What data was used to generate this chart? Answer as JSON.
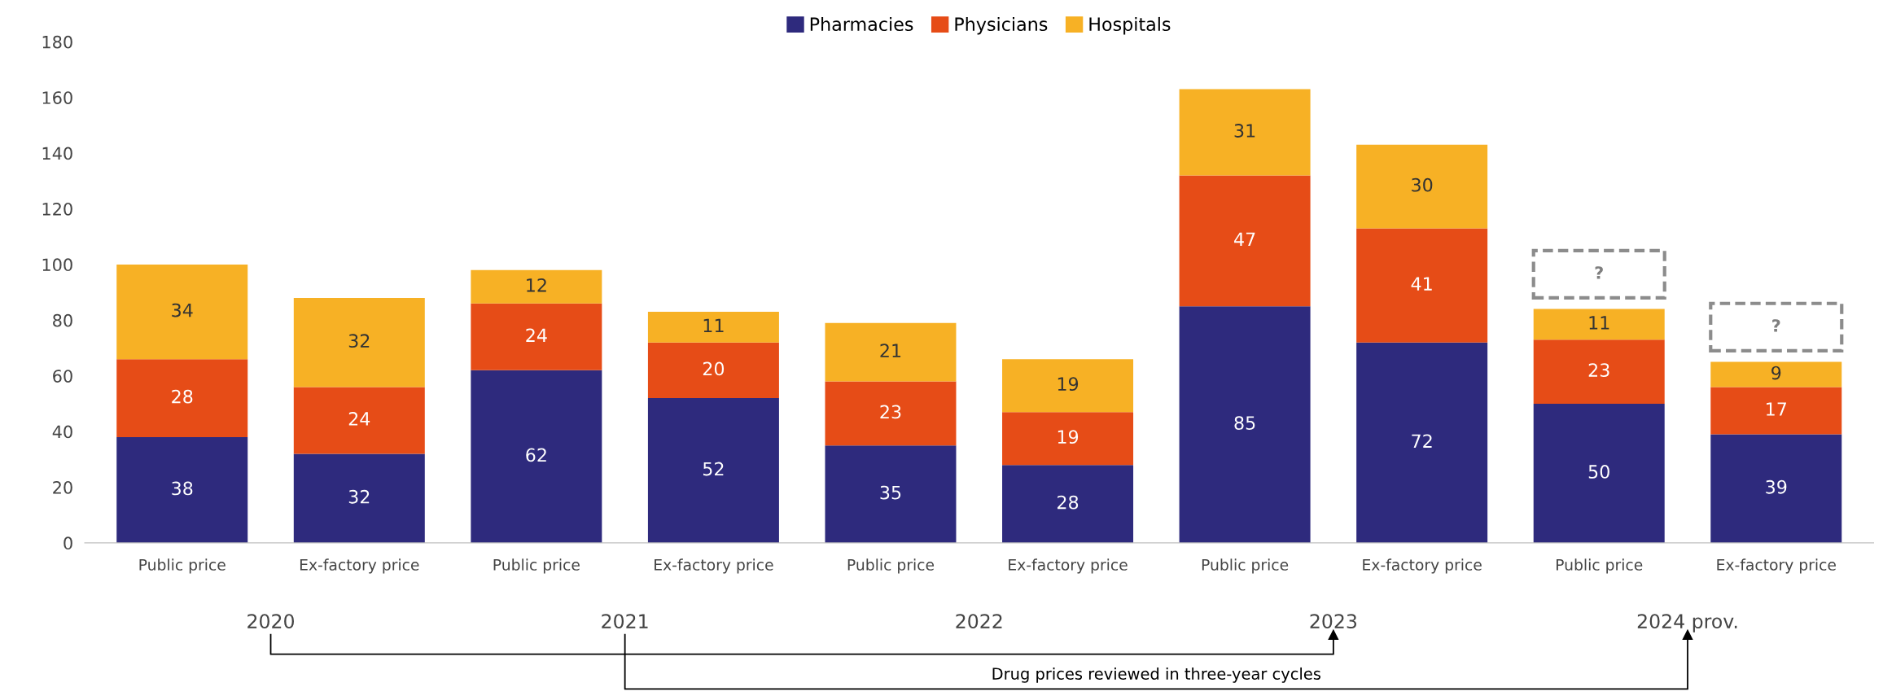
{
  "chart_data": {
    "type": "bar",
    "stacked": true,
    "categories": [
      "Public price",
      "Ex-factory price",
      "Public price",
      "Ex-factory price",
      "Public price",
      "Ex-factory price",
      "Public price",
      "Ex-factory price",
      "Public price",
      "Ex-factory price"
    ],
    "series": [
      {
        "name": "Pharmacies",
        "color": "#2e2a7d",
        "values": [
          38,
          32,
          62,
          52,
          35,
          28,
          85,
          72,
          50,
          39
        ]
      },
      {
        "name": "Physicians",
        "color": "#e64c17",
        "values": [
          28,
          24,
          24,
          20,
          23,
          19,
          47,
          41,
          23,
          17
        ]
      },
      {
        "name": "Hospitals",
        "color": "#f7b125",
        "values": [
          34,
          32,
          12,
          11,
          21,
          19,
          31,
          30,
          11,
          9
        ]
      }
    ],
    "ylim": [
      0,
      180
    ],
    "yticks": [
      0,
      20,
      40,
      60,
      80,
      100,
      120,
      140,
      160,
      180
    ],
    "data_labels": true,
    "legend": "top",
    "grid": false,
    "annotations": [
      "2020",
      "2021",
      "2022",
      "2023",
      "2024 prov.",
      "?",
      "?",
      "Drug prices reviewed in three-year cycles"
    ]
  }
}
